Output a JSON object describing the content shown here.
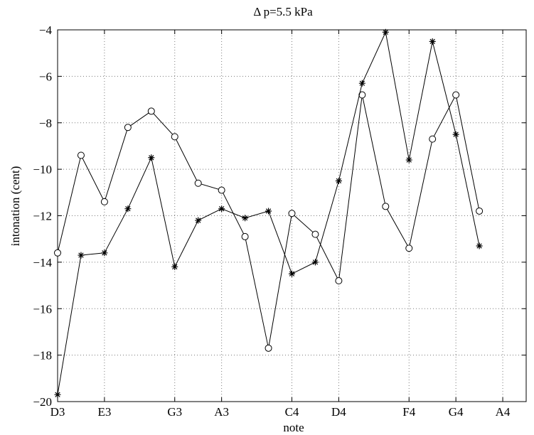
{
  "chart_data": {
    "type": "line",
    "title": "Δ p=5.5 kPa",
    "xlabel": "note",
    "ylabel": "intonation (cent)",
    "ylim": [
      -20,
      -4
    ],
    "yticks": [
      -20,
      -18,
      -16,
      -14,
      -12,
      -10,
      -8,
      -6,
      -4
    ],
    "xlim": [
      0,
      20
    ],
    "xticks": [
      {
        "pos": 0,
        "label": "D3"
      },
      {
        "pos": 2,
        "label": "E3"
      },
      {
        "pos": 5,
        "label": "G3"
      },
      {
        "pos": 7,
        "label": "A3"
      },
      {
        "pos": 10,
        "label": "C4"
      },
      {
        "pos": 12,
        "label": "D4"
      },
      {
        "pos": 15,
        "label": "F4"
      },
      {
        "pos": 17,
        "label": "G4"
      },
      {
        "pos": 19,
        "label": "A4"
      }
    ],
    "grid": true,
    "x": [
      0,
      1,
      2,
      3,
      4,
      5,
      6,
      7,
      8,
      9,
      10,
      11,
      12,
      13,
      14,
      15,
      16,
      17,
      18
    ],
    "series": [
      {
        "marker": "circle",
        "values": [
          -13.6,
          -9.4,
          -11.4,
          -8.2,
          -7.5,
          -8.6,
          -10.6,
          -10.9,
          -12.9,
          -17.7,
          -11.9,
          -12.8,
          -14.8,
          -6.8,
          -11.6,
          -13.4,
          -8.7,
          -6.8,
          -11.8
        ]
      },
      {
        "marker": "star",
        "values": [
          -19.7,
          -13.7,
          -13.6,
          -11.7,
          -9.5,
          -14.2,
          -12.2,
          -11.7,
          -12.1,
          -11.8,
          -14.5,
          -14.0,
          -10.5,
          -6.3,
          -4.1,
          -9.6,
          -4.5,
          -8.5,
          -13.3
        ]
      }
    ]
  }
}
